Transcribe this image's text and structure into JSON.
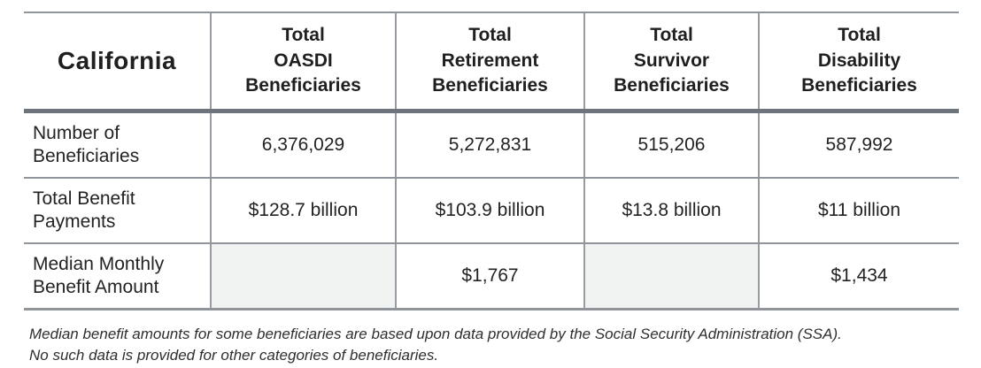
{
  "table": {
    "corner_label": "California",
    "column_headers": [
      "Total\nOASDI\nBeneficiaries",
      "Total\nRetirement\nBeneficiaries",
      "Total\nSurvivor\nBeneficiaries",
      "Total\nDisability\nBeneficiaries"
    ],
    "rows": [
      {
        "label": "Number of\nBeneficiaries",
        "values": [
          "6,376,029",
          "5,272,831",
          "515,206",
          "587,992"
        ]
      },
      {
        "label": "Total Benefit\nPayments",
        "values": [
          "$128.7 billion",
          "$103.9 billion",
          "$13.8 billion",
          "$11 billion"
        ]
      },
      {
        "label": "Median Monthly\nBenefit Amount",
        "values": [
          "",
          "$1,767",
          "",
          "$1,434"
        ]
      }
    ]
  },
  "footnote": "Median benefit amounts for some beneficiaries are based upon data provided by the Social Security Administration (SSA).\nNo such data is provided for other categories of beneficiaries.",
  "colors": {
    "thin_border": "#8f959b",
    "thick_border": "#6e747c",
    "muted_cell_background": "#f1f3f3",
    "text": "#232323"
  },
  "chart_data": {
    "type": "table",
    "title": "California",
    "columns": [
      "California",
      "Total OASDI Beneficiaries",
      "Total Retirement Beneficiaries",
      "Total Survivor Beneficiaries",
      "Total Disability Beneficiaries"
    ],
    "rows": [
      [
        "Number of Beneficiaries",
        6376029,
        5272831,
        515206,
        587992
      ],
      [
        "Total Benefit Payments",
        "$128.7 billion",
        "$103.9 billion",
        "$13.8 billion",
        "$11 billion"
      ],
      [
        "Median Monthly Benefit Amount",
        null,
        "$1,767",
        null,
        "$1,434"
      ]
    ],
    "notes": "Median benefit amounts for some beneficiaries are based upon data provided by the Social Security Administration (SSA). No such data is provided for other categories of beneficiaries."
  }
}
